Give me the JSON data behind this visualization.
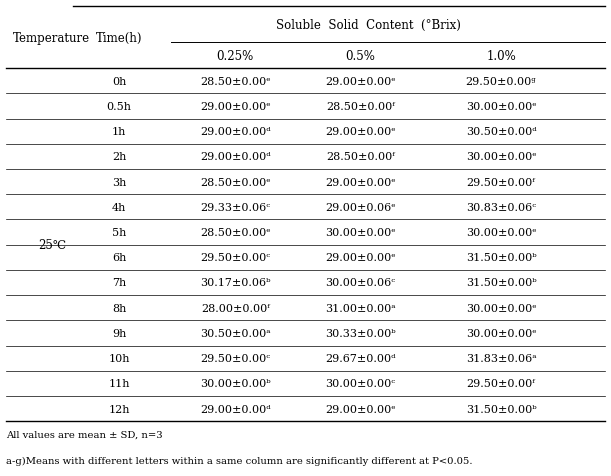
{
  "headers": {
    "col1": "Temperature",
    "col2": "Time(h)",
    "col3_main": "Soluble  Solid  Content  (°Brix)",
    "col3a": "0.25%",
    "col3b": "0.5%",
    "col3c": "1.0%"
  },
  "temperature_label": "25℃",
  "rows": [
    {
      "time": "0h",
      "v1": "28.50±0.00ᵉ",
      "v2": "29.00±0.00ᵉ",
      "v3": "29.50±0.00ᵍ"
    },
    {
      "time": "0.5h",
      "v1": "29.00±0.00ᵉ",
      "v2": "28.50±0.00ᶠ",
      "v3": "30.00±0.00ᵉ"
    },
    {
      "time": "1h",
      "v1": "29.00±0.00ᵈ",
      "v2": "29.00±0.00ᵉ",
      "v3": "30.50±0.00ᵈ"
    },
    {
      "time": "2h",
      "v1": "29.00±0.00ᵈ",
      "v2": "28.50±0.00ᶠ",
      "v3": "30.00±0.00ᵉ"
    },
    {
      "time": "3h",
      "v1": "28.50±0.00ᵉ",
      "v2": "29.00±0.00ᵉ",
      "v3": "29.50±0.00ᶠ"
    },
    {
      "time": "4h",
      "v1": "29.33±0.06ᶜ",
      "v2": "29.00±0.06ᵉ",
      "v3": "30.83±0.06ᶜ"
    },
    {
      "time": "5h",
      "v1": "28.50±0.00ᵉ",
      "v2": "30.00±0.00ᵉ",
      "v3": "30.00±0.00ᵉ"
    },
    {
      "time": "6h",
      "v1": "29.50±0.00ᶜ",
      "v2": "29.00±0.00ᵉ",
      "v3": "31.50±0.00ᵇ"
    },
    {
      "time": "7h",
      "v1": "30.17±0.06ᵇ",
      "v2": "30.00±0.06ᶜ",
      "v3": "31.50±0.00ᵇ"
    },
    {
      "time": "8h",
      "v1": "28.00±0.00ᶠ",
      "v2": "31.00±0.00ᵃ",
      "v3": "30.00±0.00ᵉ"
    },
    {
      "time": "9h",
      "v1": "30.50±0.00ᵃ",
      "v2": "30.33±0.00ᵇ",
      "v3": "30.00±0.00ᵉ"
    },
    {
      "time": "10h",
      "v1": "29.50±0.00ᶜ",
      "v2": "29.67±0.00ᵈ",
      "v3": "31.83±0.06ᵃ"
    },
    {
      "time": "11h",
      "v1": "30.00±0.00ᵇ",
      "v2": "30.00±0.00ᶜ",
      "v3": "29.50±0.00ᶠ"
    },
    {
      "time": "12h",
      "v1": "29.00±0.00ᵈ",
      "v2": "29.00±0.00ᵉ",
      "v3": "31.50±0.00ᵇ"
    }
  ],
  "footnote1": "All values are mean ± SD, n=3",
  "footnote2": "a-g)Means with different letters within a same column are significantly different at P<0.05.",
  "bg_color": "#ffffff",
  "text_color": "#000000",
  "col_x": {
    "temp": 0.085,
    "time": 0.195,
    "v1": 0.385,
    "v2": 0.59,
    "v3": 0.82
  },
  "fontsize_header": 8.5,
  "fontsize_data": 8.0,
  "fontsize_footnote": 7.2
}
